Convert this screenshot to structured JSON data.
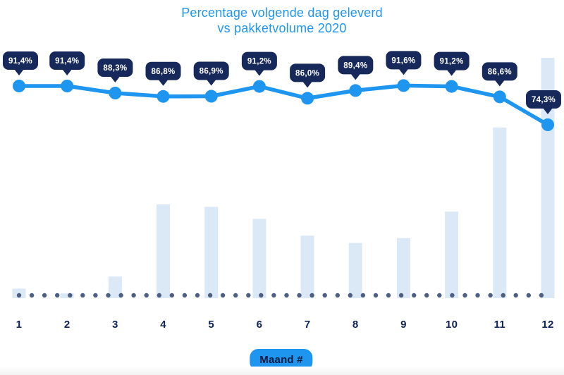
{
  "title": {
    "line1": "Percentage volgende dag geleverd",
    "line2": "vs pakketvolume 2020"
  },
  "x_axis": {
    "label_badge": "Maand #",
    "ticks": [
      "1",
      "2",
      "3",
      "4",
      "5",
      "6",
      "7",
      "8",
      "9",
      "10",
      "11",
      "12"
    ]
  },
  "chart_data": {
    "type": "combo",
    "title": "Percentage volgende dag geleverd vs pakketvolume 2020",
    "categories": [
      "1",
      "2",
      "3",
      "4",
      "5",
      "6",
      "7",
      "8",
      "9",
      "10",
      "11",
      "12"
    ],
    "xlabel": "Maand #",
    "ylabel": "",
    "legend": "none",
    "grid": false,
    "series": [
      {
        "name": "Percentage volgende dag geleverd",
        "type": "line",
        "unit": "%",
        "values": [
          91.4,
          91.4,
          88.3,
          86.8,
          86.9,
          91.2,
          86.0,
          89.4,
          91.6,
          91.2,
          86.6,
          74.3
        ],
        "labels": [
          "91,4%",
          "91,4%",
          "88,3%",
          "86,8%",
          "86,9%",
          "91,2%",
          "86,0%",
          "89,4%",
          "91,6%",
          "91,2%",
          "86,6%",
          "74,3%"
        ],
        "color": "#1E96F0",
        "label_bubble_color": "#17295B",
        "label_text_color": "#FFFFFF"
      },
      {
        "name": "Pakketvolume 2020",
        "type": "bar",
        "unit": "relative volume (axis not labeled, % of tallest bar)",
        "values": [
          4,
          2,
          9,
          39,
          38,
          33,
          26,
          23,
          25,
          36,
          71,
          100
        ],
        "color": "#DBE9F7"
      }
    ],
    "baseline": {
      "style": "dotted",
      "color": "#4E5F82"
    }
  },
  "colors": {
    "accent_blue": "#1E96F0",
    "navy": "#17295B",
    "axis_text": "#0E2256",
    "bar_fill": "#DBE9F7",
    "dot_baseline": "#4E5F82",
    "background": "#FFFFFF"
  }
}
